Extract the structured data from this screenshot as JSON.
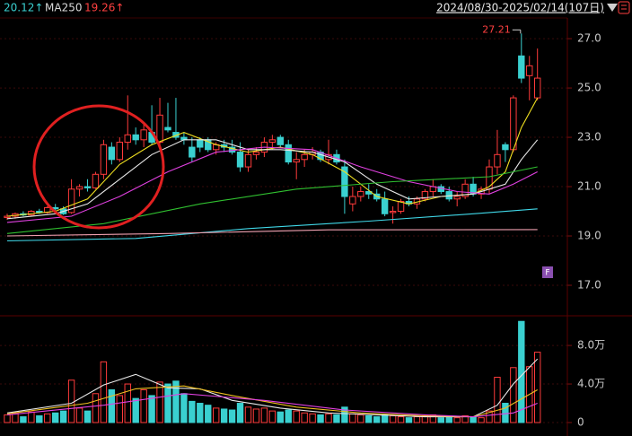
{
  "header": {
    "items": [
      {
        "text": "20.12↑",
        "color": "#3ad0d0"
      },
      {
        "text": "MA250",
        "color": "#d8d8d8"
      },
      {
        "text": "19.26↑",
        "color": "#ff4040"
      }
    ],
    "range": "2024/08/30-2025/02/14(107日)",
    "badge": "F"
  },
  "chart_data": [
    {
      "type": "candlestick",
      "categories": [
        null,
        null,
        null,
        null,
        null,
        null,
        null,
        null,
        null,
        null,
        null,
        null,
        null,
        null,
        null,
        null,
        null,
        null,
        null,
        null,
        null,
        null,
        null,
        null,
        null,
        null,
        null,
        null,
        null,
        null,
        null,
        null,
        null,
        null,
        null,
        null,
        null,
        null,
        null,
        null,
        null,
        null,
        null,
        null,
        null,
        null,
        null,
        null,
        null,
        null,
        null,
        null,
        null,
        null,
        null,
        null,
        null,
        null,
        null,
        null,
        null,
        null,
        null,
        null,
        null,
        null,
        null
      ],
      "open": [
        19.75,
        19.8,
        19.9,
        19.85,
        20.0,
        19.95,
        20.15,
        20.1,
        19.95,
        20.9,
        21.0,
        20.95,
        21.5,
        22.6,
        22.1,
        22.8,
        23.1,
        22.9,
        23.2,
        22.8,
        23.4,
        23.2,
        23.0,
        22.6,
        22.9,
        22.9,
        22.5,
        22.7,
        22.6,
        22.4,
        21.8,
        22.3,
        22.4,
        22.8,
        23.0,
        22.7,
        22.0,
        22.1,
        22.3,
        22.4,
        22.1,
        22.3,
        21.8,
        20.3,
        20.6,
        20.8,
        20.7,
        20.5,
        19.95,
        20.0,
        20.4,
        20.3,
        20.5,
        20.8,
        21.0,
        20.8,
        20.5,
        20.6,
        21.1,
        20.7,
        20.9,
        21.8,
        22.7,
        22.5,
        26.3,
        25.5,
        24.6
      ],
      "high": [
        19.9,
        19.95,
        20.0,
        20.05,
        20.1,
        20.2,
        20.3,
        20.2,
        21.3,
        21.1,
        21.3,
        21.6,
        22.9,
        22.8,
        23.0,
        24.7,
        23.4,
        23.6,
        24.3,
        24.6,
        24.4,
        24.6,
        23.2,
        23.0,
        23.0,
        23.0,
        22.8,
        22.9,
        22.9,
        22.8,
        22.5,
        22.6,
        23.0,
        23.1,
        23.1,
        22.9,
        22.4,
        22.5,
        22.6,
        22.5,
        22.9,
        22.5,
        22.1,
        21.0,
        21.0,
        21.1,
        20.9,
        20.8,
        20.2,
        20.5,
        20.6,
        20.6,
        20.9,
        21.3,
        21.1,
        21.0,
        20.8,
        21.3,
        21.4,
        21.0,
        22.1,
        23.3,
        22.8,
        24.7,
        27.21,
        26.3,
        26.6
      ],
      "low": [
        19.65,
        19.7,
        19.8,
        19.8,
        19.9,
        19.9,
        20.0,
        19.85,
        19.9,
        20.6,
        20.8,
        20.9,
        21.3,
        21.9,
        22.0,
        22.5,
        22.7,
        22.6,
        22.7,
        22.5,
        23.2,
        22.9,
        22.7,
        22.0,
        22.4,
        22.4,
        22.3,
        22.4,
        22.3,
        21.6,
        21.6,
        22.1,
        22.2,
        22.5,
        22.6,
        21.9,
        21.3,
        21.8,
        22.1,
        22.0,
        21.9,
        21.9,
        19.9,
        20.0,
        20.4,
        20.5,
        20.4,
        19.8,
        19.5,
        19.9,
        20.2,
        20.1,
        20.4,
        20.6,
        20.7,
        20.4,
        20.2,
        20.5,
        20.6,
        20.5,
        20.7,
        21.5,
        22.0,
        22.4,
        25.2,
        24.5,
        24.5
      ],
      "close": [
        19.8,
        19.9,
        19.85,
        20.0,
        19.95,
        20.15,
        20.1,
        19.9,
        20.9,
        21.0,
        20.95,
        21.5,
        22.7,
        22.1,
        22.8,
        23.1,
        22.9,
        23.3,
        22.8,
        23.9,
        23.3,
        23.0,
        22.9,
        22.2,
        22.6,
        22.5,
        22.7,
        22.6,
        22.4,
        21.8,
        22.3,
        22.4,
        22.8,
        22.9,
        22.7,
        22.0,
        22.1,
        22.3,
        22.4,
        22.1,
        22.3,
        22.0,
        20.6,
        20.6,
        20.8,
        20.7,
        20.5,
        19.9,
        20.0,
        20.4,
        20.3,
        20.5,
        20.8,
        21.0,
        20.8,
        20.5,
        20.6,
        21.1,
        20.7,
        20.9,
        21.8,
        22.3,
        22.5,
        24.6,
        25.4,
        25.9,
        25.4
      ],
      "up_color": "#ff3b3b",
      "down_color": "#3ad0d0",
      "lines": [
        {
          "color": "#f0e020",
          "x": [
            0,
            6,
            10,
            14,
            18,
            22,
            26,
            30,
            34,
            38,
            42,
            46,
            50,
            54,
            58,
            60,
            62,
            64,
            66
          ],
          "values": [
            19.8,
            20.0,
            20.5,
            21.9,
            22.7,
            23.2,
            22.7,
            22.4,
            22.6,
            22.3,
            21.6,
            20.6,
            20.3,
            20.6,
            20.7,
            21.0,
            21.6,
            23.4,
            24.6
          ]
        },
        {
          "color": "#e8e8e8",
          "x": [
            0,
            6,
            10,
            14,
            18,
            22,
            26,
            30,
            34,
            38,
            42,
            46,
            50,
            54,
            58,
            62,
            64,
            66
          ],
          "values": [
            19.7,
            19.9,
            20.3,
            21.3,
            22.3,
            22.9,
            22.9,
            22.5,
            22.5,
            22.4,
            22.0,
            21.1,
            20.5,
            20.6,
            20.7,
            21.1,
            22.1,
            22.9
          ]
        },
        {
          "color": "#e040e0",
          "x": [
            0,
            8,
            14,
            20,
            26,
            32,
            38,
            44,
            50,
            56,
            60,
            63,
            66
          ],
          "values": [
            19.55,
            19.8,
            20.6,
            21.6,
            22.4,
            22.6,
            22.5,
            21.8,
            21.2,
            20.8,
            20.7,
            21.1,
            21.6
          ]
        },
        {
          "color": "#30c030",
          "x": [
            0,
            12,
            24,
            36,
            48,
            60,
            66
          ],
          "values": [
            19.1,
            19.5,
            20.3,
            20.9,
            21.2,
            21.4,
            21.8
          ]
        },
        {
          "color": "#40d8e8",
          "x": [
            0,
            16,
            30,
            45,
            58,
            66
          ],
          "values": [
            18.8,
            18.9,
            19.3,
            19.6,
            19.9,
            20.1
          ]
        },
        {
          "color": "#f0a0b0",
          "x": [
            0,
            20,
            40,
            66
          ],
          "values": [
            19.0,
            19.1,
            19.25,
            19.26
          ]
        }
      ],
      "annotation": {
        "value": 27.21,
        "index": 64
      },
      "ylim": [
        16.2,
        27.84
      ],
      "yticks": [
        {
          "value": 27,
          "label": "27.0"
        },
        {
          "value": 25,
          "label": "25.0"
        },
        {
          "value": 23,
          "label": "23.0"
        },
        {
          "value": 21,
          "label": "21.0"
        },
        {
          "value": 19,
          "label": "19.0"
        },
        {
          "value": 17,
          "label": "17.0"
        }
      ],
      "grid": true
    },
    {
      "type": "bar",
      "values": [
        0.8,
        1.0,
        0.6,
        1.1,
        0.7,
        0.9,
        1.0,
        1.2,
        4.4,
        1.5,
        1.2,
        3.0,
        6.3,
        3.4,
        2.8,
        4.0,
        2.5,
        3.4,
        2.8,
        4.2,
        4.0,
        4.3,
        3.0,
        2.2,
        2.0,
        1.8,
        1.5,
        1.4,
        1.3,
        2.0,
        1.6,
        1.4,
        1.5,
        1.2,
        1.1,
        1.3,
        1.2,
        1.0,
        0.9,
        0.8,
        0.9,
        0.8,
        1.6,
        0.9,
        0.8,
        0.7,
        0.6,
        0.8,
        0.7,
        0.6,
        0.5,
        0.6,
        0.7,
        0.8,
        0.5,
        0.6,
        0.5,
        0.7,
        0.6,
        0.5,
        1.2,
        4.7,
        2.0,
        5.7,
        10.5,
        5.8,
        7.3
      ],
      "lines": [
        {
          "color": "#e8e8e8",
          "x": [
            0,
            8,
            12,
            16,
            20,
            24,
            28,
            34,
            40,
            46,
            52,
            58,
            61,
            63,
            66
          ],
          "values": [
            1.0,
            2.0,
            3.9,
            5.0,
            3.6,
            3.5,
            2.3,
            1.5,
            1.0,
            0.8,
            0.6,
            0.6,
            1.8,
            4.0,
            6.6
          ]
        },
        {
          "color": "#f0c020",
          "x": [
            0,
            10,
            16,
            22,
            28,
            36,
            44,
            52,
            58,
            62,
            66
          ],
          "values": [
            0.9,
            2.0,
            3.5,
            3.8,
            2.8,
            1.6,
            1.0,
            0.7,
            0.6,
            1.5,
            3.4
          ]
        },
        {
          "color": "#e040e0",
          "x": [
            0,
            12,
            22,
            32,
            42,
            52,
            58,
            63,
            66
          ],
          "values": [
            0.8,
            1.8,
            3.0,
            2.3,
            1.3,
            0.8,
            0.6,
            1.0,
            2.0
          ]
        }
      ],
      "ylim": [
        0,
        10.8
      ],
      "yticks": [
        {
          "value": 8,
          "label": "8.0万"
        },
        {
          "value": 4,
          "label": "4.0万"
        },
        0
      ],
      "grid": true
    }
  ]
}
